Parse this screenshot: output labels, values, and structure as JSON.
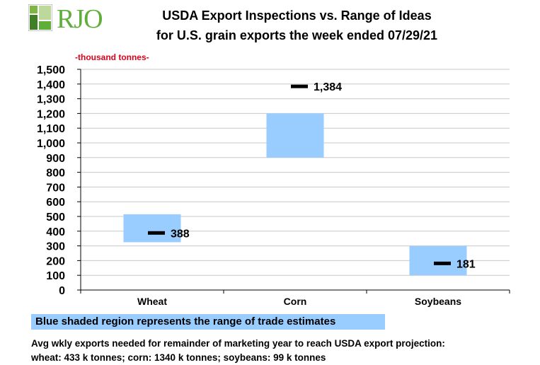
{
  "logo": {
    "text": "RJO"
  },
  "chart_data": {
    "type": "range-bar",
    "title": "USDA Export Inspections vs. Range of Ideas",
    "subtitle": "for U.S. grain exports the week ended 07/29/21",
    "ylabel": "-thousand  tonnes-",
    "ylim": [
      0,
      1500
    ],
    "yticks": [
      "0",
      "100",
      "200",
      "300",
      "400",
      "500",
      "600",
      "700",
      "800",
      "900",
      "1,000",
      "1,100",
      "1,200",
      "1,300",
      "1,400",
      "1,500"
    ],
    "ytick_values": [
      0,
      100,
      200,
      300,
      400,
      500,
      600,
      700,
      800,
      900,
      1000,
      1100,
      1200,
      1300,
      1400,
      1500
    ],
    "grid": true,
    "categories": [
      "Wheat",
      "Corn",
      "Soybeans"
    ],
    "series": [
      {
        "name": "Range of trade estimates",
        "low": [
          325,
          900,
          100
        ],
        "high": [
          515,
          1200,
          300
        ],
        "color": "#99ccff"
      },
      {
        "name": "USDA export inspections",
        "values": [
          388,
          1384,
          181
        ],
        "labels": [
          "388",
          "1,384",
          "181"
        ],
        "color": "#000000"
      }
    ]
  },
  "legend": {
    "text": "Blue shaded region represents the range of trade estimates"
  },
  "footnote": {
    "line1": "Avg wkly exports needed for remainder of marketing year to reach USDA export projection:",
    "line2": "wheat: 433 k tonnes; corn: 1340 k tonnes; soybeans: 99 k tonnes"
  }
}
